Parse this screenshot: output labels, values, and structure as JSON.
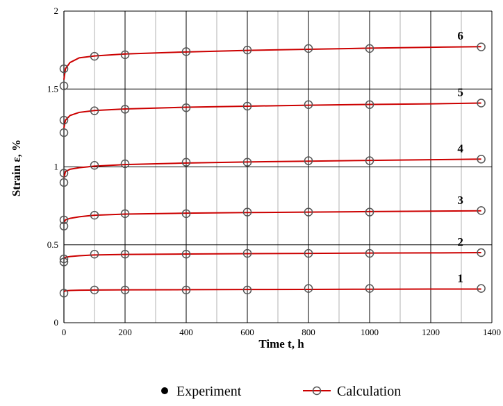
{
  "chart_data": {
    "type": "line",
    "title": "",
    "xlabel": "Time  t, h",
    "ylabel": "Strain  ε, %",
    "xlim": [
      0,
      1400
    ],
    "ylim": [
      0,
      2
    ],
    "x_ticks": [
      "0",
      "200",
      "400",
      "600",
      "800",
      "1000",
      "1200",
      "1400"
    ],
    "y_ticks": [
      "0",
      "0.5",
      "1",
      "1.5",
      "2"
    ],
    "grid": true,
    "legend_position": "bottom",
    "legend": {
      "experiment": "Experiment",
      "calculation": "Calculation"
    },
    "colors": {
      "calculation": "#cc0000",
      "marker": "#555555",
      "grid_major": "#000000",
      "grid_minor": "#b0b0b0"
    },
    "series": [
      {
        "name": "1",
        "experiment_x": [
          0,
          100,
          200,
          400,
          600,
          800,
          1000,
          1365
        ],
        "experiment_y": [
          0.19,
          0.21,
          0.21,
          0.21,
          0.21,
          0.22,
          0.22,
          0.22
        ],
        "calculation_x": [
          0,
          5,
          20,
          50,
          100,
          200,
          400,
          600,
          800,
          1000,
          1200,
          1365
        ],
        "calculation_y": [
          0.2,
          0.205,
          0.207,
          0.209,
          0.21,
          0.211,
          0.212,
          0.213,
          0.214,
          0.215,
          0.216,
          0.216
        ]
      },
      {
        "name": "2",
        "experiment_x": [
          0,
          0,
          100,
          200,
          400,
          600,
          800,
          1000,
          1365
        ],
        "experiment_y": [
          0.39,
          0.41,
          0.44,
          0.44,
          0.44,
          0.445,
          0.445,
          0.445,
          0.45
        ],
        "calculation_x": [
          0,
          5,
          20,
          50,
          100,
          200,
          400,
          600,
          800,
          1000,
          1200,
          1365
        ],
        "calculation_y": [
          0.41,
          0.42,
          0.425,
          0.43,
          0.435,
          0.438,
          0.441,
          0.443,
          0.445,
          0.447,
          0.448,
          0.45
        ]
      },
      {
        "name": "3",
        "experiment_x": [
          0,
          0,
          100,
          200,
          400,
          600,
          800,
          1000,
          1365
        ],
        "experiment_y": [
          0.62,
          0.66,
          0.69,
          0.7,
          0.7,
          0.71,
          0.71,
          0.71,
          0.72
        ],
        "calculation_x": [
          0,
          5,
          20,
          50,
          100,
          200,
          400,
          600,
          800,
          1000,
          1200,
          1365
        ],
        "calculation_y": [
          0.64,
          0.66,
          0.67,
          0.68,
          0.69,
          0.697,
          0.703,
          0.707,
          0.71,
          0.713,
          0.716,
          0.718
        ]
      },
      {
        "name": "4",
        "experiment_x": [
          0,
          0,
          100,
          200,
          400,
          600,
          800,
          1000,
          1365
        ],
        "experiment_y": [
          0.9,
          0.96,
          1.01,
          1.02,
          1.03,
          1.03,
          1.04,
          1.04,
          1.05
        ],
        "calculation_x": [
          0,
          5,
          20,
          50,
          100,
          200,
          400,
          600,
          800,
          1000,
          1200,
          1365
        ],
        "calculation_y": [
          0.93,
          0.97,
          0.985,
          0.995,
          1.005,
          1.015,
          1.025,
          1.032,
          1.037,
          1.042,
          1.046,
          1.05
        ]
      },
      {
        "name": "5",
        "experiment_x": [
          0,
          0,
          100,
          200,
          400,
          600,
          800,
          1000,
          1365
        ],
        "experiment_y": [
          1.22,
          1.3,
          1.36,
          1.37,
          1.38,
          1.39,
          1.4,
          1.4,
          1.41
        ],
        "calculation_x": [
          0,
          5,
          20,
          50,
          100,
          200,
          400,
          600,
          800,
          1000,
          1200,
          1365
        ],
        "calculation_y": [
          1.25,
          1.3,
          1.33,
          1.35,
          1.362,
          1.372,
          1.383,
          1.39,
          1.396,
          1.401,
          1.405,
          1.41
        ]
      },
      {
        "name": "6",
        "experiment_x": [
          0,
          0,
          100,
          200,
          400,
          600,
          800,
          1000,
          1365
        ],
        "experiment_y": [
          1.52,
          1.63,
          1.71,
          1.72,
          1.74,
          1.75,
          1.76,
          1.76,
          1.77
        ],
        "calculation_x": [
          0,
          5,
          20,
          50,
          100,
          200,
          400,
          600,
          800,
          1000,
          1200,
          1365
        ],
        "calculation_y": [
          1.56,
          1.63,
          1.67,
          1.7,
          1.712,
          1.725,
          1.738,
          1.748,
          1.755,
          1.762,
          1.768,
          1.772
        ]
      }
    ]
  }
}
